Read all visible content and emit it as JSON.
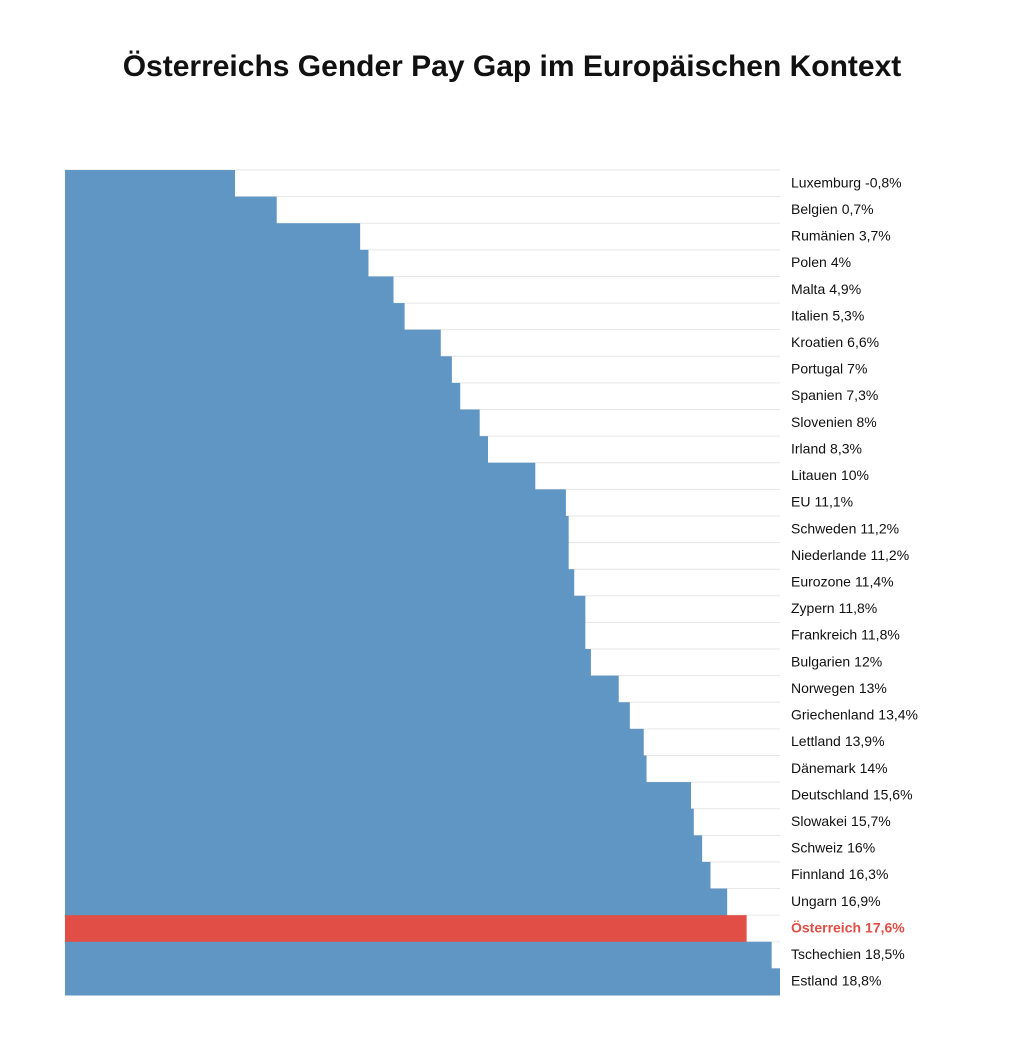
{
  "chart_data": {
    "type": "cliff",
    "title": "Österreichs Gender Pay Gap im Europäischen Kontext",
    "categories": [
      "Luxemburg",
      "Belgien",
      "Rumänien",
      "Polen",
      "Malta",
      "Italien",
      "Kroatien",
      "Portugal",
      "Spanien",
      "Slovenien",
      "Irland",
      "Litauen",
      "EU",
      "Schweden",
      "Niederlande",
      "Eurozone",
      "Zypern",
      "Frankreich",
      "Bulgarien",
      "Norwegen",
      "Griechenland",
      "Lettland",
      "Dänemark",
      "Deutschland",
      "Slowakei",
      "Schweiz",
      "Finnland",
      "Ungarn",
      "Österreich",
      "Tschechien",
      "Estland"
    ],
    "values": [
      -0.8,
      0.7,
      3.7,
      4,
      4.9,
      5.3,
      6.6,
      7,
      7.3,
      8,
      8.3,
      10,
      11.1,
      11.2,
      11.2,
      11.4,
      11.8,
      11.8,
      12,
      13,
      13.4,
      13.9,
      14,
      15.6,
      15.7,
      16,
      16.3,
      16.9,
      17.6,
      18.5,
      18.8
    ],
    "value_labels": [
      "-0,8%",
      "0,7%",
      "3,7%",
      "4%",
      "4,9%",
      "5,3%",
      "6,6%",
      "7%",
      "7,3%",
      "8%",
      "8,3%",
      "10%",
      "11,1%",
      "11,2%",
      "11,2%",
      "11,4%",
      "11,8%",
      "11,8%",
      "12%",
      "13%",
      "13,4%",
      "13,9%",
      "14%",
      "15,6%",
      "15,7%",
      "16%",
      "16,3%",
      "16,9%",
      "17,6%",
      "18,5%",
      "18,8%"
    ],
    "color": "#6096c4",
    "colors": [
      "#6096c4",
      "#6096c4",
      "#6096c4",
      "#6096c4",
      "#6096c4",
      "#6096c4",
      "#6096c4",
      "#6096c4",
      "#6096c4",
      "#6096c4",
      "#6096c4",
      "#6096c4",
      "#6096c4",
      "#6096c4",
      "#6096c4",
      "#6096c4",
      "#6096c4",
      "#6096c4",
      "#6096c4",
      "#6096c4",
      "#6096c4",
      "#6096c4",
      "#6096c4",
      "#6096c4",
      "#6096c4",
      "#6096c4",
      "#6096c4",
      "#6096c4",
      "#e04e45",
      "#6096c4",
      "#6096c4"
    ]
  }
}
